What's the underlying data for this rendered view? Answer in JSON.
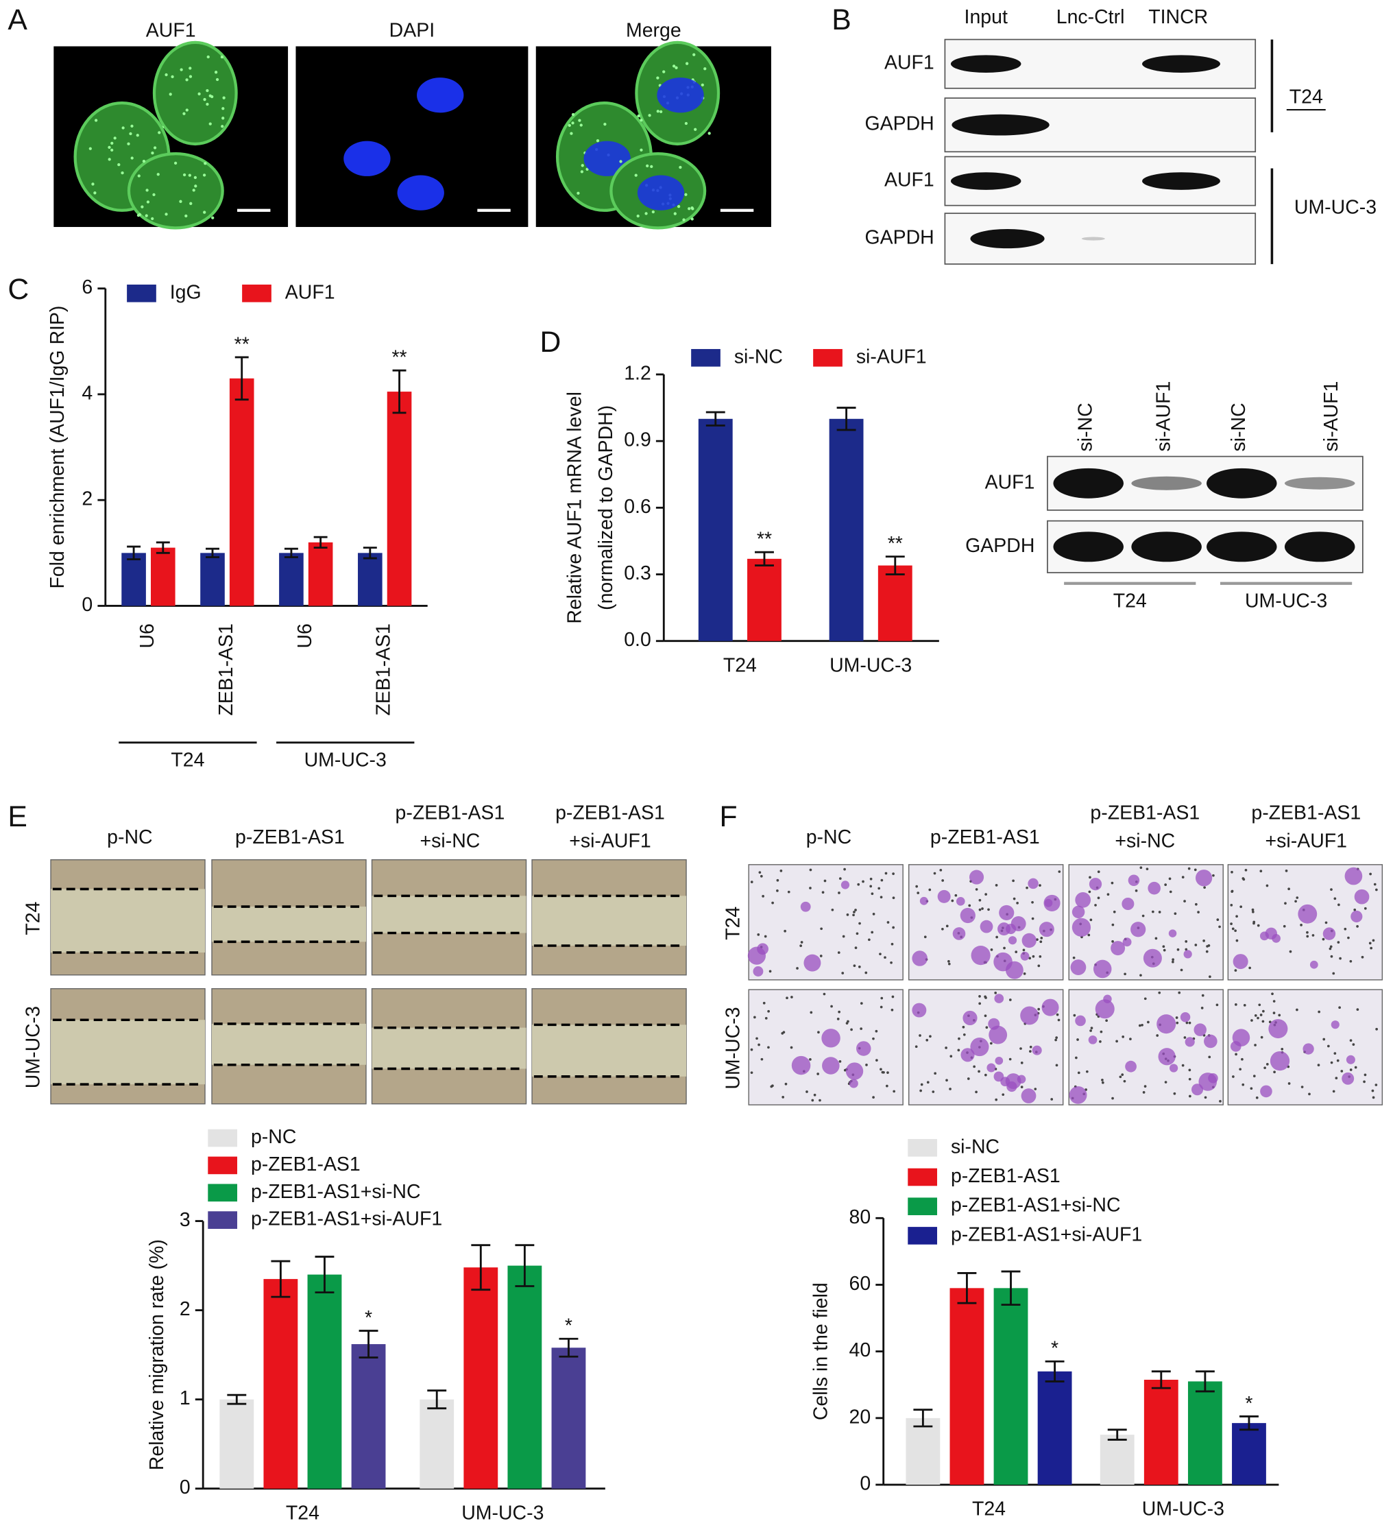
{
  "panel_letters": [
    "A",
    "B",
    "C",
    "D",
    "E",
    "F"
  ],
  "panel_a": {
    "titles": [
      "AUF1",
      "DAPI",
      "Merge"
    ]
  },
  "panel_b": {
    "columns": [
      "Input",
      "Lnc-Ctrl",
      "TINCR"
    ],
    "rows": [
      "AUF1",
      "GAPDH",
      "AUF1",
      "GAPDH"
    ],
    "cell_lines": [
      "T24",
      "UM-UC-3"
    ]
  },
  "panel_d_blot": {
    "lanes": [
      "si-NC",
      "si-AUF1",
      "si-NC",
      "si-AUF1"
    ],
    "rows": [
      "AUF1",
      "GAPDH"
    ],
    "groups": [
      "T24",
      "UM-UC-3"
    ]
  },
  "panel_e_images": {
    "columns": [
      [
        "p-NC"
      ],
      [
        "p-ZEB1-AS1"
      ],
      [
        "p-ZEB1-AS1",
        "+si-NC"
      ],
      [
        "p-ZEB1-AS1",
        "+si-AUF1"
      ]
    ],
    "rows": [
      "T24",
      "UM-UC-3"
    ]
  },
  "panel_f_images": {
    "columns": [
      [
        "p-NC"
      ],
      [
        "p-ZEB1-AS1"
      ],
      [
        "p-ZEB1-AS1",
        "+si-NC"
      ],
      [
        "p-ZEB1-AS1",
        "+si-AUF1"
      ]
    ],
    "rows": [
      "T24",
      "UM-UC-3"
    ]
  },
  "chart_data": [
    {
      "type": "bar",
      "ylabel": "Fold enrichment (AUF1/IgG RIP)",
      "categories": [
        "U6",
        "ZEB1-AS1",
        "U6",
        "ZEB1-AS1"
      ],
      "groups": [
        "T24",
        "UM-UC-3"
      ],
      "series": [
        {
          "name": "IgG",
          "color": "#1c2a8a",
          "values": [
            1.0,
            1.0,
            1.0,
            1.0
          ],
          "errors": [
            0.12,
            0.08,
            0.08,
            0.1
          ]
        },
        {
          "name": "AUF1",
          "color": "#e8141c",
          "values": [
            1.1,
            4.3,
            1.2,
            4.05
          ],
          "errors": [
            0.1,
            0.4,
            0.1,
            0.4
          ],
          "significance": [
            null,
            "**",
            null,
            "**"
          ]
        }
      ],
      "ylim": [
        0,
        6
      ],
      "yticks": [
        0,
        2,
        4,
        6
      ]
    },
    {
      "type": "bar",
      "ylabel": [
        "Relative AUF1 mRNA level",
        "(normalized to GAPDH)"
      ],
      "categories": [
        "T24",
        "UM-UC-3"
      ],
      "series": [
        {
          "name": "si-NC",
          "color": "#1c2a8a",
          "values": [
            1.0,
            1.0
          ],
          "errors": [
            0.03,
            0.05
          ]
        },
        {
          "name": "si-AUF1",
          "color": "#e8141c",
          "values": [
            0.37,
            0.34
          ],
          "errors": [
            0.03,
            0.04
          ],
          "significance": [
            "**",
            "**"
          ]
        }
      ],
      "ylim": [
        0,
        1.2
      ],
      "yticks": [
        {
          "value": 0,
          "label": "0.0"
        },
        0.3,
        0.6,
        0.9,
        1.2
      ]
    },
    {
      "type": "bar",
      "ylabel": "Relative migration rate (%)",
      "categories": [
        "T24",
        "UM-UC-3"
      ],
      "series": [
        {
          "name": "p-NC",
          "color": "#e3e3e3",
          "values": [
            1.0,
            1.0
          ],
          "errors": [
            0.05,
            0.1
          ]
        },
        {
          "name": "p-ZEB1-AS1",
          "color": "#e8141c",
          "values": [
            2.35,
            2.48
          ],
          "errors": [
            0.2,
            0.25
          ]
        },
        {
          "name": "p-ZEB1-AS1+si-NC",
          "color": "#0a9a48",
          "values": [
            2.4,
            2.5
          ],
          "errors": [
            0.2,
            0.23
          ]
        },
        {
          "name": "p-ZEB1-AS1+si-AUF1",
          "color": "#4a3f93",
          "values": [
            1.62,
            1.58
          ],
          "errors": [
            0.15,
            0.1
          ],
          "significance": [
            "*",
            "*"
          ]
        }
      ],
      "ylim": [
        0,
        3
      ],
      "yticks": [
        0,
        1,
        2,
        3
      ]
    },
    {
      "type": "bar",
      "ylabel": "Cells in the field",
      "categories": [
        "T24",
        "UM-UC-3"
      ],
      "series": [
        {
          "name": "si-NC",
          "color": "#e3e3e3",
          "values": [
            20,
            15
          ],
          "errors": [
            2.5,
            1.5
          ]
        },
        {
          "name": "p-ZEB1-AS1",
          "color": "#e8141c",
          "values": [
            59,
            31.5
          ],
          "errors": [
            4.5,
            2.5
          ]
        },
        {
          "name": "p-ZEB1-AS1+si-NC",
          "color": "#0a9a48",
          "values": [
            59,
            31
          ],
          "errors": [
            5,
            3
          ]
        },
        {
          "name": "p-ZEB1-AS1+si-AUF1",
          "color": "#1a2090",
          "values": [
            34,
            18.5
          ],
          "errors": [
            3,
            2
          ],
          "significance": [
            "*",
            "*"
          ]
        }
      ],
      "ylim": [
        0,
        80
      ],
      "yticks": [
        0,
        20,
        40,
        60,
        80
      ]
    }
  ]
}
